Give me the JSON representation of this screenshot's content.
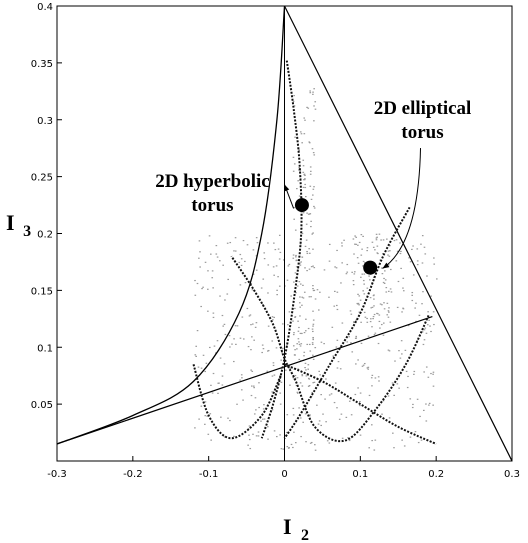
{
  "chart_data": {
    "type": "scatter",
    "title": "",
    "xlabel": {
      "main": "I",
      "sub": "2"
    },
    "ylabel": {
      "main": "I",
      "sub": "3"
    },
    "xlim": [
      -0.3,
      0.3
    ],
    "ylim": [
      0.0,
      0.4
    ],
    "grid": false,
    "xticks": [
      {
        "value": -0.3,
        "label": "-0.3"
      },
      {
        "value": -0.2,
        "label": "-0.2"
      },
      {
        "value": -0.1,
        "label": "-0.1"
      },
      {
        "value": 0.0,
        "label": "0"
      },
      {
        "value": 0.1,
        "label": "0.1"
      },
      {
        "value": 0.2,
        "label": "0.2"
      },
      {
        "value": 0.3,
        "label": "0.3"
      }
    ],
    "yticks": [
      {
        "value": 0.05,
        "label": "0.05"
      },
      {
        "value": 0.1,
        "label": "0.1"
      },
      {
        "value": 0.15,
        "label": "0.15"
      },
      {
        "value": 0.2,
        "label": "0.2"
      },
      {
        "value": 0.25,
        "label": "0.25"
      },
      {
        "value": 0.3,
        "label": "0.3"
      },
      {
        "value": 0.35,
        "label": "0.35"
      },
      {
        "value": 0.4,
        "label": "0.4"
      }
    ],
    "boundary_lines": [
      {
        "points": [
          [
            0.0,
            0.4
          ],
          [
            0.3,
            0.0
          ]
        ]
      },
      {
        "points": [
          [
            -0.3,
            0.015
          ],
          [
            0.195,
            0.127
          ]
        ]
      }
    ],
    "boundary_curves": [
      {
        "points": [
          [
            -0.3,
            0.015
          ],
          [
            -0.2,
            0.04
          ],
          [
            -0.12,
            0.07
          ],
          [
            -0.06,
            0.13
          ],
          [
            -0.03,
            0.2
          ],
          [
            -0.01,
            0.3
          ],
          [
            0.0,
            0.4
          ]
        ]
      }
    ],
    "vertical_line": {
      "x": 0.0,
      "y_range": [
        0.0,
        0.4
      ]
    },
    "orbit_curves": [
      {
        "points": [
          [
            0.003,
            0.352
          ],
          [
            0.012,
            0.31
          ],
          [
            0.02,
            0.26
          ],
          [
            0.022,
            0.2
          ],
          [
            0.012,
            0.14
          ],
          [
            0.0,
            0.09
          ],
          [
            -0.015,
            0.05
          ],
          [
            -0.03,
            0.02
          ]
        ]
      },
      {
        "points": [
          [
            0.19,
            0.128
          ],
          [
            0.16,
            0.085
          ],
          [
            0.12,
            0.045
          ],
          [
            0.08,
            0.018
          ],
          [
            0.04,
            0.03
          ],
          [
            0.015,
            0.07
          ],
          [
            0.0,
            0.09
          ],
          [
            -0.015,
            0.12
          ],
          [
            -0.04,
            0.15
          ],
          [
            -0.07,
            0.18
          ]
        ]
      },
      {
        "points": [
          [
            0.165,
            0.223
          ],
          [
            0.13,
            0.18
          ],
          [
            0.1,
            0.13
          ],
          [
            0.06,
            0.085
          ],
          [
            0.02,
            0.04
          ],
          [
            0.0,
            0.02
          ]
        ]
      },
      {
        "points": [
          [
            -0.12,
            0.085
          ],
          [
            -0.1,
            0.04
          ],
          [
            -0.07,
            0.02
          ],
          [
            -0.03,
            0.04
          ],
          [
            -0.005,
            0.075
          ]
        ]
      },
      {
        "points": [
          [
            0.0,
            0.085
          ],
          [
            0.05,
            0.07
          ],
          [
            0.1,
            0.05
          ],
          [
            0.15,
            0.03
          ],
          [
            0.2,
            0.015
          ]
        ]
      }
    ],
    "scatter_clouds": [
      {
        "x_range": [
          0.01,
          0.04
        ],
        "y_range": [
          0.06,
          0.33
        ],
        "count": 180
      },
      {
        "x_range": [
          -0.12,
          0.2
        ],
        "y_range": [
          0.01,
          0.2
        ],
        "count": 520
      },
      {
        "x_range": [
          0.09,
          0.14
        ],
        "y_range": [
          0.11,
          0.2
        ],
        "count": 90
      }
    ],
    "markers": [
      {
        "x": 0.023,
        "y": 0.225
      },
      {
        "x": 0.113,
        "y": 0.17
      }
    ],
    "annotations": [
      {
        "lines": [
          "2D hyperbolic",
          "torus"
        ],
        "text_at": [
          -0.095,
          0.241
        ],
        "arrow_to": [
          0.012,
          0.222
        ]
      },
      {
        "lines": [
          "2D elliptical",
          "torus"
        ],
        "text_at": [
          0.182,
          0.305
        ],
        "arrow_to": [
          0.124,
          0.164
        ]
      }
    ]
  }
}
